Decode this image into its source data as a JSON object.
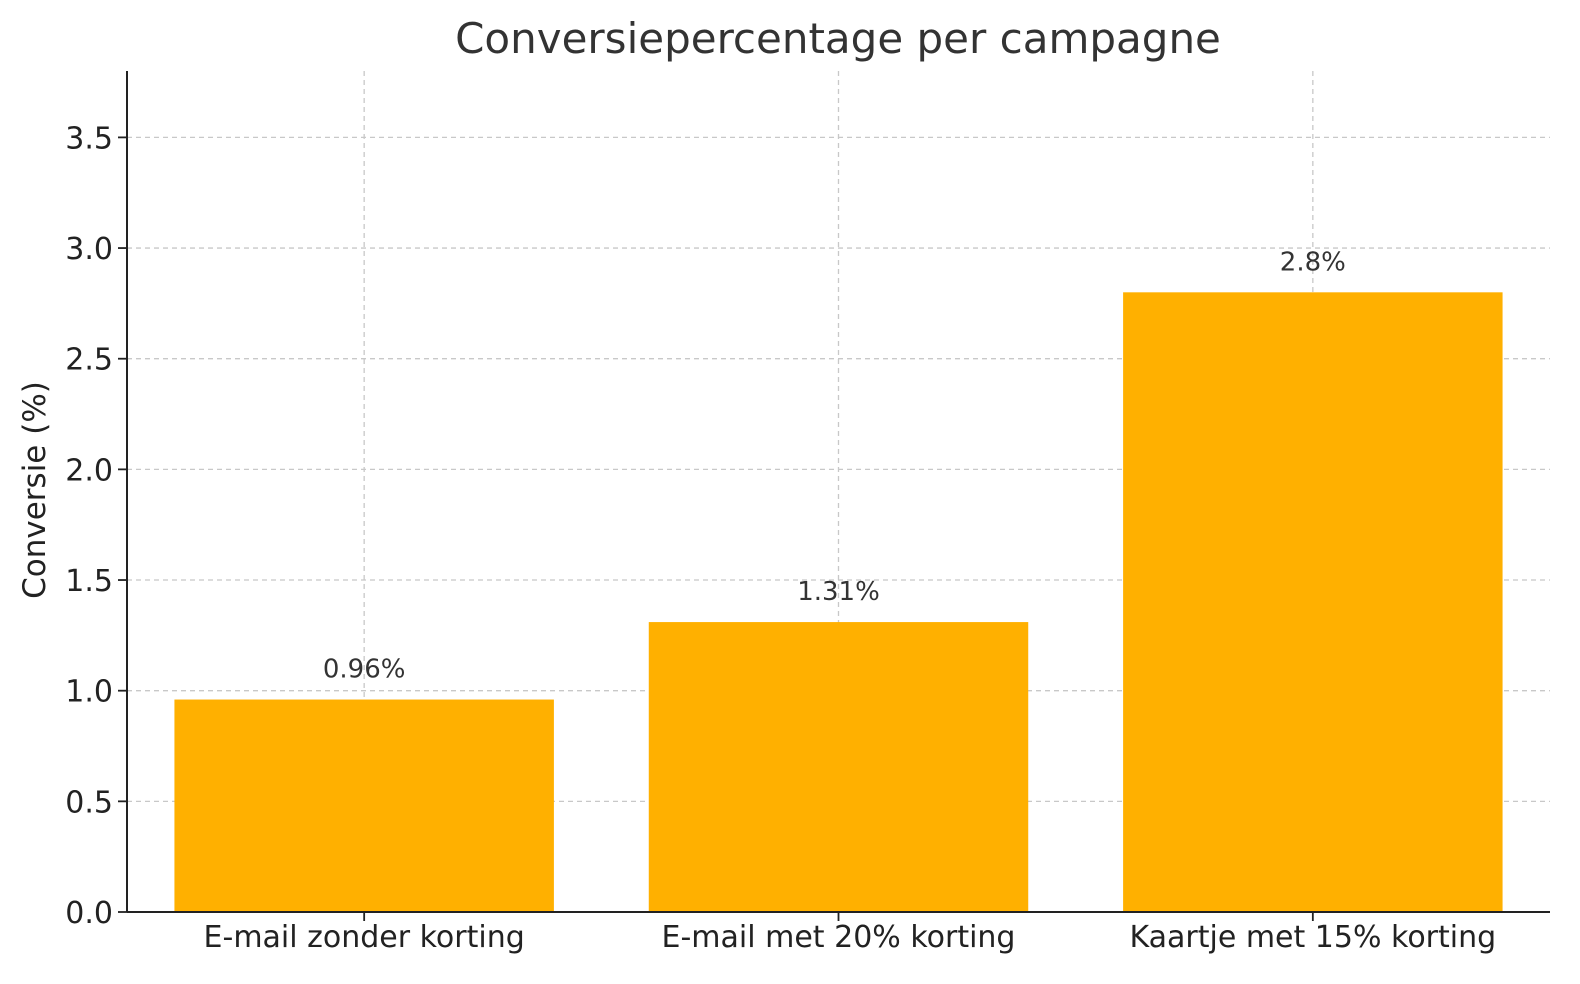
{
  "chart_data": {
    "type": "bar",
    "title": "Conversiepercentage per campagne",
    "xlabel": "",
    "ylabel": "Conversie (%)",
    "categories": [
      "E-mail zonder korting",
      "E-mail met 20% korting",
      "Kaartje met 15% korting"
    ],
    "values": [
      0.96,
      1.31,
      2.8
    ],
    "value_labels": [
      "0.96%",
      "1.31%",
      "2.8%"
    ],
    "ylim": [
      0,
      3.8
    ],
    "yticks": [
      0.0,
      0.5,
      1.0,
      1.5,
      2.0,
      2.5,
      3.0,
      3.5
    ],
    "ytick_labels": [
      "0.0",
      "0.5",
      "1.0",
      "1.5",
      "2.0",
      "2.5",
      "3.0",
      "3.5"
    ],
    "grid": true,
    "bar_color": "#FFB000",
    "legend": "none"
  }
}
